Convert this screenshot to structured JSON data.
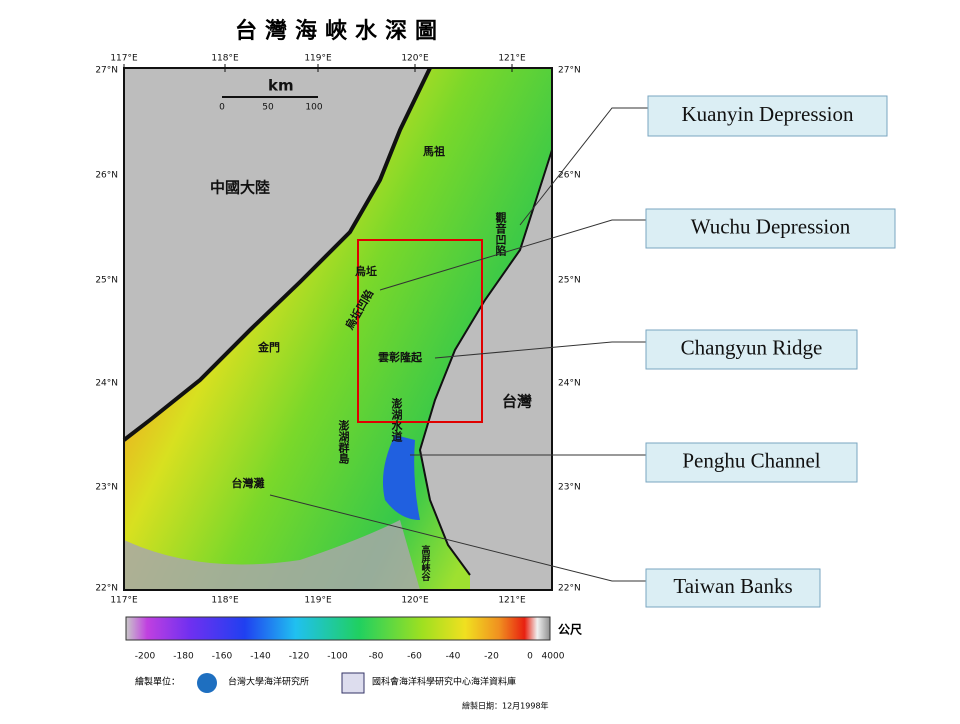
{
  "title": "台灣海峽水深圖",
  "map": {
    "longitudes": [
      "117°E",
      "118°E",
      "119°E",
      "120°E",
      "121°E"
    ],
    "latitudes": [
      "27°N",
      "26°N",
      "25°N",
      "24°N",
      "23°N",
      "22°N"
    ],
    "scale": {
      "unit": "km",
      "ticks": [
        "0",
        "50",
        "100"
      ]
    },
    "labels": [
      "中國大陸",
      "台灣",
      "馬祖",
      "烏坵",
      "金門",
      "澎湖群島",
      "觀音凹陷",
      "烏坵凹陷",
      "雲彰隆起",
      "澎湖水道",
      "台灣灘",
      "高屏峽谷"
    ]
  },
  "colorbar": {
    "ticks": [
      "-200",
      "-180",
      "-160",
      "-140",
      "-120",
      "-100",
      "-80",
      "-60",
      "-40",
      "-20",
      "0",
      "4000"
    ],
    "unit": "公尺"
  },
  "footer": {
    "producer_label": "繪製單位：",
    "institutions": [
      "台灣大學海洋研究所",
      "國科會海洋科學研究中心海洋資料庫"
    ],
    "date": "繪製日期：12月1998年"
  },
  "callouts": [
    "Kuanyin Depression",
    "Wuchu Depression",
    "Changyun Ridge",
    "Penghu Channel",
    "Taiwan Banks"
  ]
}
